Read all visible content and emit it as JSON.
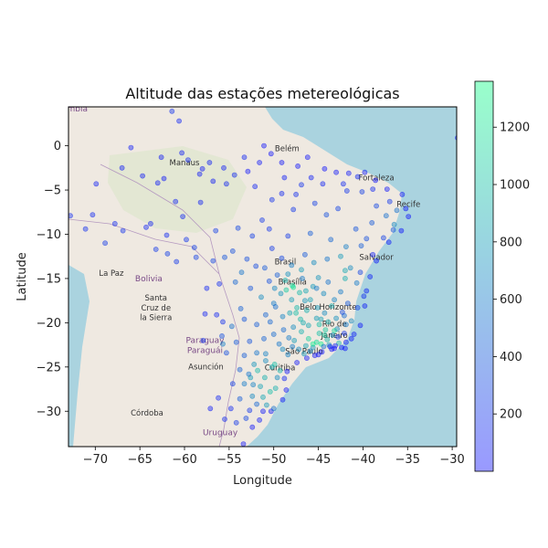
{
  "chart_data": {
    "type": "scatter",
    "title": "Altitude das estações metereológicas",
    "xlabel": "Longitude",
    "ylabel": "Latitude",
    "xlim": [
      -73,
      -29.5
    ],
    "ylim": [
      -34,
      4.4
    ],
    "xticks": [
      -70,
      -65,
      -60,
      -55,
      -50,
      -45,
      -40,
      -35,
      -30
    ],
    "xtick_labels": [
      "−70",
      "−65",
      "−60",
      "−55",
      "−50",
      "−45",
      "−40",
      "−35",
      "−30"
    ],
    "yticks": [
      0,
      -5,
      -10,
      -15,
      -20,
      -25,
      -30
    ],
    "ytick_labels": [
      "0",
      "−5",
      "−10",
      "−15",
      "−20",
      "−25",
      "−30"
    ],
    "grid": false,
    "colorbar": {
      "min": 0,
      "max": 1360,
      "ticks": [
        200,
        400,
        600,
        800,
        1000,
        1200
      ],
      "tick_labels": [
        "200",
        "400",
        "600",
        "800",
        "1000",
        "1200"
      ],
      "color_low": "#0000ff",
      "color_high": "#00ff7f",
      "alpha": 0.4
    },
    "basemap_labels": [
      {
        "text": "Manaus",
        "lon": -60.0,
        "lat": -2.2,
        "kind": "city"
      },
      {
        "text": "Belém",
        "lon": -48.5,
        "lat": -0.6,
        "kind": "city"
      },
      {
        "text": "Fortaleza",
        "lon": -38.5,
        "lat": -3.9,
        "kind": "city"
      },
      {
        "text": "Recife",
        "lon": -34.9,
        "lat": -6.9,
        "kind": "city"
      },
      {
        "text": "Salvador",
        "lon": -38.5,
        "lat": -12.9,
        "kind": "city"
      },
      {
        "text": "Brasil",
        "lon": -48.7,
        "lat": -13.4,
        "kind": "city"
      },
      {
        "text": "Brasília",
        "lon": -47.9,
        "lat": -15.7,
        "kind": "city"
      },
      {
        "text": "Belo Horizonte",
        "lon": -43.9,
        "lat": -18.5,
        "kind": "city"
      },
      {
        "text": "Rio de",
        "lon": -43.2,
        "lat": -20.4,
        "kind": "city"
      },
      {
        "text": "Janeiro",
        "lon": -43.2,
        "lat": -21.7,
        "kind": "city"
      },
      {
        "text": "São Paulo",
        "lon": -46.6,
        "lat": -23.5,
        "kind": "city"
      },
      {
        "text": "Curitiba",
        "lon": -49.3,
        "lat": -25.4,
        "kind": "city"
      },
      {
        "text": "La Paz",
        "lon": -68.2,
        "lat": -14.7,
        "kind": "city"
      },
      {
        "text": "Bolivia",
        "lon": -64.0,
        "lat": -15.3,
        "kind": "country"
      },
      {
        "text": "Santa",
        "lon": -63.2,
        "lat": -17.5,
        "kind": "city"
      },
      {
        "text": "Cruz de",
        "lon": -63.2,
        "lat": -18.6,
        "kind": "city"
      },
      {
        "text": "la Sierra",
        "lon": -63.2,
        "lat": -19.7,
        "kind": "city"
      },
      {
        "text": "Paraguay",
        "lon": -57.7,
        "lat": -22.3,
        "kind": "country"
      },
      {
        "text": "Paraguái",
        "lon": -57.7,
        "lat": -23.4,
        "kind": "country"
      },
      {
        "text": "Asunción",
        "lon": -57.6,
        "lat": -25.3,
        "kind": "city"
      },
      {
        "text": "Córdoba",
        "lon": -64.2,
        "lat": -30.5,
        "kind": "city"
      },
      {
        "text": "Uruguay",
        "lon": -56.0,
        "lat": -32.7,
        "kind": "country"
      },
      {
        "text": "mbia",
        "lon": -72.0,
        "lat": 3.9,
        "kind": "country"
      }
    ],
    "points": [
      [
        -59.6,
        -1.6,
        120
      ],
      [
        -57.2,
        -1.9,
        100
      ],
      [
        -60.3,
        -0.8,
        90
      ],
      [
        -66.0,
        -0.2,
        80
      ],
      [
        -58.3,
        -3.2,
        70
      ],
      [
        -63.0,
        -4.2,
        90
      ],
      [
        -56.8,
        -4.0,
        80
      ],
      [
        -61.0,
        -6.3,
        110
      ],
      [
        -67.8,
        -8.8,
        150
      ],
      [
        -70.3,
        -7.8,
        140
      ],
      [
        -72.8,
        -7.9,
        160
      ],
      [
        -71.1,
        -9.4,
        170
      ],
      [
        -64.3,
        -9.2,
        120
      ],
      [
        -62.0,
        -10.1,
        140
      ],
      [
        -60.9,
        -13.1,
        220
      ],
      [
        -63.2,
        -11.7,
        230
      ],
      [
        -58.7,
        -12.6,
        260
      ],
      [
        -54.4,
        -3.3,
        140
      ],
      [
        -55.3,
        -4.3,
        130
      ],
      [
        -52.1,
        -4.6,
        110
      ],
      [
        -49.1,
        -1.9,
        30
      ],
      [
        -47.3,
        -2.3,
        20
      ],
      [
        -46.2,
        -1.3,
        30
      ],
      [
        -44.3,
        -2.6,
        20
      ],
      [
        -43.0,
        -3.0,
        40
      ],
      [
        -41.6,
        -3.1,
        60
      ],
      [
        -39.8,
        -3.0,
        50
      ],
      [
        -38.6,
        -3.9,
        30
      ],
      [
        -37.3,
        -4.9,
        40
      ],
      [
        -35.6,
        -5.5,
        60
      ],
      [
        -35.2,
        -7.1,
        40
      ],
      [
        -34.9,
        -8.0,
        20
      ],
      [
        -35.7,
        -9.6,
        30
      ],
      [
        -37.1,
        -10.9,
        50
      ],
      [
        -38.9,
        -12.3,
        90
      ],
      [
        -38.5,
        -13.0,
        40
      ],
      [
        -39.2,
        -14.8,
        80
      ],
      [
        -39.6,
        -16.4,
        100
      ],
      [
        -39.8,
        -18.1,
        70
      ],
      [
        -40.3,
        -20.3,
        40
      ],
      [
        -41.3,
        -21.8,
        20
      ],
      [
        -42.0,
        -22.9,
        20
      ],
      [
        -43.2,
        -22.9,
        30
      ],
      [
        -43.5,
        -23.0,
        40
      ],
      [
        -44.6,
        -23.3,
        20
      ],
      [
        -45.4,
        -23.7,
        30
      ],
      [
        -46.3,
        -24.0,
        20
      ],
      [
        -48.5,
        -25.5,
        30
      ],
      [
        -48.6,
        -27.6,
        40
      ],
      [
        -49.0,
        -28.7,
        50
      ],
      [
        -50.3,
        -30.0,
        60
      ],
      [
        -51.2,
        -30.0,
        50
      ],
      [
        -52.4,
        -31.8,
        40
      ],
      [
        -53.4,
        -33.7,
        30
      ],
      [
        -55.5,
        -30.9,
        150
      ],
      [
        -57.1,
        -29.7,
        80
      ],
      [
        -54.8,
        -29.7,
        140
      ],
      [
        -53.8,
        -28.6,
        420
      ],
      [
        -52.4,
        -28.3,
        680
      ],
      [
        -51.2,
        -28.4,
        850
      ],
      [
        -50.4,
        -27.8,
        980
      ],
      [
        -49.8,
        -27.4,
        900
      ],
      [
        -51.5,
        -27.2,
        820
      ],
      [
        -53.3,
        -26.9,
        600
      ],
      [
        -52.6,
        -26.2,
        800
      ],
      [
        -51.0,
        -26.2,
        900
      ],
      [
        -49.3,
        -25.4,
        920
      ],
      [
        -50.2,
        -25.0,
        880
      ],
      [
        -52.2,
        -24.7,
        750
      ],
      [
        -53.8,
        -25.3,
        450
      ],
      [
        -51.9,
        -23.4,
        560
      ],
      [
        -53.3,
        -23.7,
        430
      ],
      [
        -50.9,
        -23.5,
        640
      ],
      [
        -49.0,
        -23.0,
        690
      ],
      [
        -47.9,
        -22.7,
        620
      ],
      [
        -46.6,
        -23.5,
        780
      ],
      [
        -45.6,
        -22.8,
        760
      ],
      [
        -45.2,
        -22.2,
        1150
      ],
      [
        -44.7,
        -22.4,
        1300
      ],
      [
        -43.8,
        -22.5,
        800
      ],
      [
        -42.7,
        -22.3,
        950
      ],
      [
        -42.1,
        -21.2,
        200
      ],
      [
        -42.9,
        -20.7,
        700
      ],
      [
        -43.9,
        -19.9,
        900
      ],
      [
        -44.3,
        -18.9,
        700
      ],
      [
        -45.2,
        -19.5,
        800
      ],
      [
        -46.1,
        -20.3,
        850
      ],
      [
        -46.9,
        -21.0,
        900
      ],
      [
        -47.8,
        -20.5,
        700
      ],
      [
        -48.9,
        -20.8,
        500
      ],
      [
        -48.2,
        -18.9,
        850
      ],
      [
        -47.4,
        -18.3,
        950
      ],
      [
        -46.5,
        -17.5,
        750
      ],
      [
        -47.9,
        -15.8,
        1150
      ],
      [
        -48.6,
        -16.3,
        1050
      ],
      [
        -47.8,
        -16.0,
        1200
      ],
      [
        -49.2,
        -16.7,
        750
      ],
      [
        -50.0,
        -17.8,
        600
      ],
      [
        -51.4,
        -17.1,
        700
      ],
      [
        -52.6,
        -16.1,
        380
      ],
      [
        -50.5,
        -15.3,
        350
      ],
      [
        -53.7,
        -18.4,
        450
      ],
      [
        -54.7,
        -20.4,
        530
      ],
      [
        -55.8,
        -21.5,
        350
      ],
      [
        -56.1,
        -15.6,
        160
      ],
      [
        -57.5,
        -16.1,
        120
      ],
      [
        -57.7,
        -19.0,
        100
      ],
      [
        -56.4,
        -19.1,
        120
      ],
      [
        -55.5,
        -12.6,
        380
      ],
      [
        -54.6,
        -11.9,
        340
      ],
      [
        -52.4,
        -10.2,
        250
      ],
      [
        -50.5,
        -9.4,
        200
      ],
      [
        -48.4,
        -10.2,
        230
      ],
      [
        -49.1,
        -12.7,
        300
      ],
      [
        -46.5,
        -12.3,
        400
      ],
      [
        -45.0,
        -14.9,
        750
      ],
      [
        -44.4,
        -16.7,
        700
      ],
      [
        -42.5,
        -16.5,
        600
      ],
      [
        -43.9,
        -15.4,
        550
      ],
      [
        -41.4,
        -13.8,
        700
      ],
      [
        -42.5,
        -12.5,
        780
      ],
      [
        -40.2,
        -11.3,
        420
      ],
      [
        -40.8,
        -9.4,
        380
      ],
      [
        -39.0,
        -8.7,
        400
      ],
      [
        -37.4,
        -7.9,
        520
      ],
      [
        -36.5,
        -8.9,
        680
      ],
      [
        -38.5,
        -6.8,
        300
      ],
      [
        -40.1,
        -5.2,
        250
      ],
      [
        -41.8,
        -5.1,
        200
      ],
      [
        -42.8,
        -7.1,
        280
      ],
      [
        -44.1,
        -7.8,
        350
      ],
      [
        -45.4,
        -6.5,
        260
      ],
      [
        -47.5,
        -5.5,
        160
      ],
      [
        -47.8,
        -7.2,
        220
      ],
      [
        -49.1,
        -5.4,
        130
      ],
      [
        -50.2,
        -6.1,
        180
      ],
      [
        -51.3,
        -8.4,
        220
      ],
      [
        -45.9,
        -9.9,
        420
      ],
      [
        -43.6,
        -10.6,
        480
      ],
      [
        -41.9,
        -11.4,
        620
      ],
      [
        -39.6,
        -10.5,
        340
      ],
      [
        -37.7,
        -10.4,
        260
      ],
      [
        -36.6,
        -9.5,
        400
      ],
      [
        -36.2,
        -7.3,
        550
      ],
      [
        -37.0,
        -6.3,
        220
      ],
      [
        -38.9,
        -4.9,
        130
      ],
      [
        -40.6,
        -3.5,
        120
      ],
      [
        -42.2,
        -4.3,
        140
      ],
      [
        -44.5,
        -4.3,
        110
      ],
      [
        -45.8,
        -3.6,
        90
      ],
      [
        -46.9,
        -4.4,
        180
      ],
      [
        -51.6,
        -1.9,
        60
      ],
      [
        -53.3,
        -1.3,
        120
      ],
      [
        -55.6,
        -2.5,
        90
      ],
      [
        -58.2,
        -6.4,
        100
      ],
      [
        -60.2,
        -8.0,
        120
      ],
      [
        -59.8,
        -10.6,
        200
      ],
      [
        -61.9,
        -12.2,
        250
      ],
      [
        -56.5,
        -9.6,
        260
      ],
      [
        -54.0,
        -9.3,
        300
      ],
      [
        -53.0,
        -12.8,
        340
      ],
      [
        -52.0,
        -13.6,
        320
      ],
      [
        -56.8,
        -13.0,
        290
      ],
      [
        -54.3,
        -15.4,
        480
      ],
      [
        -53.6,
        -14.3,
        560
      ],
      [
        -51.0,
        -13.8,
        400
      ],
      [
        -50.2,
        -11.6,
        230
      ],
      [
        -48.0,
        -13.5,
        620
      ],
      [
        -46.9,
        -14.0,
        800
      ],
      [
        -45.5,
        -13.2,
        700
      ],
      [
        -44.0,
        -12.8,
        560
      ],
      [
        -42.0,
        -14.1,
        850
      ],
      [
        -40.7,
        -15.5,
        600
      ],
      [
        -41.7,
        -17.8,
        400
      ],
      [
        -43.2,
        -17.4,
        650
      ],
      [
        -41.3,
        -19.8,
        700
      ],
      [
        -42.1,
        -19.2,
        500
      ],
      [
        -40.6,
        -18.3,
        260
      ],
      [
        -39.9,
        -17.0,
        160
      ],
      [
        -40.3,
        -14.3,
        300
      ],
      [
        -45.9,
        -17.4,
        820
      ],
      [
        -47.0,
        -19.6,
        950
      ],
      [
        -49.0,
        -19.3,
        650
      ],
      [
        -50.4,
        -19.9,
        480
      ],
      [
        -51.9,
        -20.2,
        420
      ],
      [
        -52.7,
        -22.1,
        370
      ],
      [
        -54.2,
        -22.2,
        400
      ],
      [
        -55.7,
        -22.4,
        620
      ],
      [
        -55.3,
        -23.4,
        340
      ],
      [
        -57.9,
        -22.0,
        180
      ],
      [
        -55.7,
        -19.9,
        170
      ],
      [
        -53.3,
        -19.6,
        390
      ],
      [
        -51.1,
        -21.8,
        460
      ],
      [
        -50.0,
        -21.3,
        500
      ],
      [
        -49.4,
        -22.4,
        570
      ],
      [
        -48.4,
        -23.6,
        640
      ],
      [
        -47.4,
        -24.5,
        40
      ],
      [
        -47.7,
        -22.0,
        800
      ],
      [
        -46.4,
        -22.6,
        850
      ],
      [
        -44.9,
        -21.2,
        1000
      ],
      [
        -44.2,
        -20.8,
        1050
      ],
      [
        -43.4,
        -21.4,
        700
      ],
      [
        -43.0,
        -19.5,
        720
      ],
      [
        -45.1,
        -18.3,
        780
      ],
      [
        -46.3,
        -18.6,
        900
      ],
      [
        -48.3,
        -21.7,
        600
      ],
      [
        -51.9,
        -29.2,
        480
      ],
      [
        -50.8,
        -29.3,
        780
      ],
      [
        -50.0,
        -29.7,
        550
      ],
      [
        -52.7,
        -29.9,
        210
      ],
      [
        -54.2,
        -31.3,
        220
      ],
      [
        -53.1,
        -30.8,
        300
      ],
      [
        -51.6,
        -31.0,
        80
      ],
      [
        -52.3,
        -27.0,
        640
      ],
      [
        -49.6,
        -26.2,
        700
      ],
      [
        -48.8,
        -26.3,
        120
      ],
      [
        -49.9,
        -24.7,
        990
      ],
      [
        -50.9,
        -24.3,
        700
      ],
      [
        -51.8,
        -25.4,
        960
      ],
      [
        -52.8,
        -25.8,
        560
      ],
      [
        -54.6,
        -26.9,
        260
      ],
      [
        -56.2,
        -28.5,
        120
      ],
      [
        -58.9,
        -11.5,
        260
      ],
      [
        -63.8,
        -8.8,
        100
      ],
      [
        -66.9,
        -9.6,
        180
      ],
      [
        -68.9,
        -11.0,
        230
      ],
      [
        -62.3,
        -3.7,
        60
      ],
      [
        -64.7,
        -3.4,
        70
      ],
      [
        -69.9,
        -4.3,
        90
      ],
      [
        -67.0,
        -2.5,
        80
      ],
      [
        -62.6,
        -1.3,
        70
      ],
      [
        -58.0,
        -2.6,
        60
      ],
      [
        -60.6,
        2.8,
        120
      ],
      [
        -61.4,
        3.9,
        180
      ],
      [
        -51.1,
        0.0,
        20
      ],
      [
        -50.3,
        -0.9,
        20
      ],
      [
        -52.9,
        -2.9,
        30
      ],
      [
        -48.8,
        -3.6,
        80
      ],
      [
        -29.4,
        0.9,
        30
      ],
      [
        -46.1,
        -21.8,
        1100
      ],
      [
        -45.6,
        -22.4,
        1250
      ],
      [
        -44.0,
        -21.9,
        950
      ],
      [
        -43.2,
        -20.9,
        1150
      ],
      [
        -47.2,
        -23.0,
        700
      ],
      [
        -45.9,
        -23.2,
        660
      ],
      [
        -44.4,
        -22.7,
        520
      ],
      [
        -45.0,
        -23.6,
        30
      ],
      [
        -43.7,
        -22.7,
        60
      ],
      [
        -43.1,
        -22.6,
        90
      ],
      [
        -42.4,
        -22.8,
        25
      ],
      [
        -41.9,
        -22.2,
        40
      ],
      [
        -41.0,
        -21.3,
        80
      ],
      [
        -46.7,
        -20.0,
        880
      ],
      [
        -44.7,
        -19.6,
        820
      ],
      [
        -42.3,
        -18.8,
        320
      ],
      [
        -48.0,
        -17.4,
        800
      ],
      [
        -49.9,
        -16.1,
        660
      ],
      [
        -47.1,
        -16.6,
        960
      ],
      [
        -45.6,
        -15.9,
        780
      ],
      [
        -42.0,
        -15.0,
        880
      ],
      [
        -49.6,
        -14.6,
        420
      ],
      [
        -48.4,
        -14.5,
        720
      ],
      [
        -46.8,
        -15.0,
        600
      ],
      [
        -47.5,
        -18.9,
        980
      ],
      [
        -49.8,
        -18.2,
        520
      ],
      [
        -50.9,
        -19.1,
        470
      ],
      [
        -43.5,
        -18.1,
        880
      ],
      [
        -44.9,
        -20.2,
        990
      ],
      [
        -46.4,
        -16.4,
        850
      ],
      [
        -48.7,
        -15.2,
        920
      ],
      [
        -45.2,
        -16.1,
        600
      ],
      [
        -42.8,
        -21.6,
        210
      ],
      [
        -41.9,
        -20.2,
        600
      ],
      [
        -44.3,
        -21.4,
        1050
      ]
    ]
  }
}
